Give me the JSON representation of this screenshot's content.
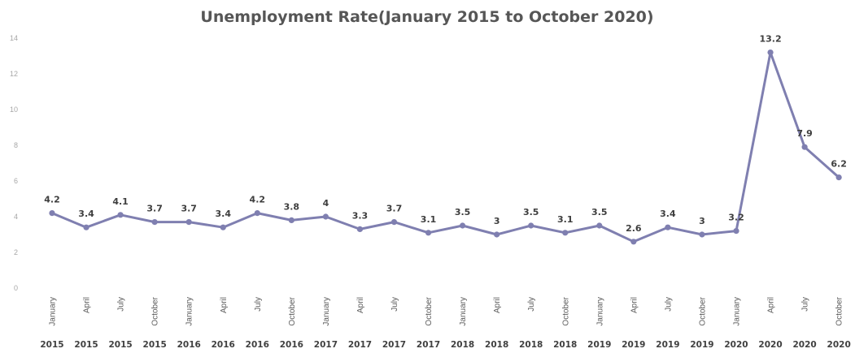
{
  "chart_data": {
    "type": "line",
    "title": "Unemployment Rate(January 2015 to October 2020)",
    "xlabel": "",
    "ylabel": "",
    "ylim": [
      0,
      14
    ],
    "yticks": [
      "0",
      "2",
      "4",
      "6",
      "8",
      "10",
      "12",
      "14"
    ],
    "grid": false,
    "legend": "none",
    "color": "#7f7fb0",
    "categories": [
      {
        "month": "January",
        "year": "2015"
      },
      {
        "month": "April",
        "year": "2015"
      },
      {
        "month": "July",
        "year": "2015"
      },
      {
        "month": "October",
        "year": "2015"
      },
      {
        "month": "January",
        "year": "2016"
      },
      {
        "month": "April",
        "year": "2016"
      },
      {
        "month": "July",
        "year": "2016"
      },
      {
        "month": "October",
        "year": "2016"
      },
      {
        "month": "January",
        "year": "2017"
      },
      {
        "month": "April",
        "year": "2017"
      },
      {
        "month": "July",
        "year": "2017"
      },
      {
        "month": "October",
        "year": "2017"
      },
      {
        "month": "January",
        "year": "2018"
      },
      {
        "month": "April",
        "year": "2018"
      },
      {
        "month": "July",
        "year": "2018"
      },
      {
        "month": "October",
        "year": "2018"
      },
      {
        "month": "January",
        "year": "2019"
      },
      {
        "month": "April",
        "year": "2019"
      },
      {
        "month": "July",
        "year": "2019"
      },
      {
        "month": "October",
        "year": "2019"
      },
      {
        "month": "January",
        "year": "2020"
      },
      {
        "month": "April",
        "year": "2020"
      },
      {
        "month": "July",
        "year": "2020"
      },
      {
        "month": "October",
        "year": "2020"
      }
    ],
    "series": [
      {
        "values": [
          4.2,
          3.4,
          4.1,
          3.7,
          3.7,
          3.4,
          4.2,
          3.8,
          4,
          3.3,
          3.7,
          3.1,
          3.5,
          3,
          3.5,
          3.1,
          3.5,
          2.6,
          3.4,
          3,
          3.2,
          13.2,
          7.9,
          6.2
        ],
        "labels": [
          "4.2",
          "3.4",
          "4.1",
          "3.7",
          "3.7",
          "3.4",
          "4.2",
          "3.8",
          "4",
          "3.3",
          "3.7",
          "3.1",
          "3.5",
          "3",
          "3.5",
          "3.1",
          "3.5",
          "2.6",
          "3.4",
          "3",
          "3.2",
          "13.2",
          "7.9",
          "6.2"
        ]
      }
    ]
  }
}
